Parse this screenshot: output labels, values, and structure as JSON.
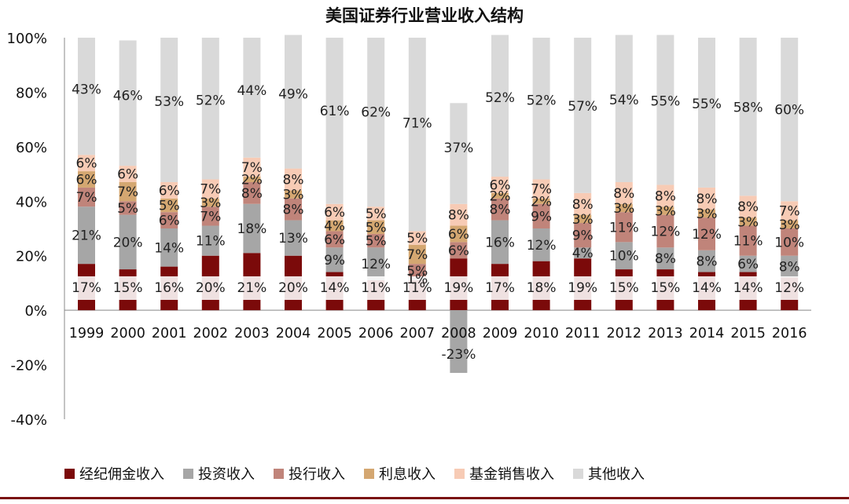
{
  "chart_data": {
    "type": "bar",
    "stacked": true,
    "title": "美国证券行业营业收入结构",
    "xlabel": "",
    "ylabel": "",
    "ylim": [
      -0.4,
      1.0
    ],
    "yticks": [
      -0.4,
      -0.2,
      0,
      0.2,
      0.4,
      0.6,
      0.8,
      1.0
    ],
    "ytick_labels": [
      "-40%",
      "-20%",
      "0%",
      "20%",
      "40%",
      "60%",
      "80%",
      "100%"
    ],
    "grid": false,
    "legend_position": "bottom",
    "categories": [
      "1999",
      "2000",
      "2001",
      "2002",
      "2003",
      "2004",
      "2005",
      "2006",
      "2007",
      "2008",
      "2009",
      "2010",
      "2011",
      "2012",
      "2013",
      "2014",
      "2015",
      "2016"
    ],
    "series": [
      {
        "name": "经纪佣金收入",
        "color": "#7b0a0a",
        "values": [
          0.17,
          0.15,
          0.16,
          0.2,
          0.21,
          0.2,
          0.14,
          0.11,
          0.11,
          0.19,
          0.17,
          0.18,
          0.19,
          0.15,
          0.15,
          0.14,
          0.14,
          0.12
        ],
        "labels": [
          "17%",
          "15%",
          "16%",
          "20%",
          "21%",
          "20%",
          "14%",
          "11%",
          "11%",
          "19%",
          "17%",
          "18%",
          "19%",
          "15%",
          "15%",
          "14%",
          "14%",
          "12%"
        ]
      },
      {
        "name": "投资收入",
        "color": "#a6a6a6",
        "values": [
          0.21,
          0.2,
          0.14,
          0.11,
          0.18,
          0.13,
          0.09,
          0.12,
          0.01,
          -0.23,
          0.16,
          0.12,
          0.04,
          0.1,
          0.08,
          0.08,
          0.06,
          0.08
        ],
        "labels": [
          "21%",
          "20%",
          "14%",
          "11%",
          "18%",
          "13%",
          "9%",
          "12%",
          "1%",
          "-23%",
          "16%",
          "12%",
          "4%",
          "10%",
          "8%",
          "8%",
          "6%",
          "8%"
        ]
      },
      {
        "name": "投行收入",
        "color": "#c0847a",
        "values": [
          0.07,
          0.05,
          0.06,
          0.07,
          0.08,
          0.08,
          0.06,
          0.05,
          0.05,
          0.06,
          0.08,
          0.09,
          0.09,
          0.11,
          0.12,
          0.12,
          0.11,
          0.1
        ],
        "labels": [
          "7%",
          "5%",
          "6%",
          "7%",
          "8%",
          "8%",
          "6%",
          "5%",
          "5%",
          "6%",
          "8%",
          "9%",
          "9%",
          "11%",
          "12%",
          "12%",
          "11%",
          "10%"
        ]
      },
      {
        "name": "利息收入",
        "color": "#d4a771",
        "values": [
          0.06,
          0.07,
          0.05,
          0.03,
          0.02,
          0.03,
          0.04,
          0.05,
          0.07,
          0.06,
          0.02,
          0.02,
          0.03,
          0.03,
          0.03,
          0.03,
          0.03,
          0.03
        ],
        "labels": [
          "6%",
          "7%",
          "5%",
          "3%",
          "2%",
          "3%",
          "4%",
          "5%",
          "7%",
          "6%",
          "2%",
          "2%",
          "3%",
          "3%",
          "3%",
          "3%",
          "3%",
          "3%"
        ]
      },
      {
        "name": "基金销售收入",
        "color": "#f7cbb5",
        "values": [
          0.06,
          0.06,
          0.06,
          0.07,
          0.07,
          0.08,
          0.06,
          0.05,
          0.05,
          0.08,
          0.06,
          0.07,
          0.08,
          0.08,
          0.08,
          0.08,
          0.08,
          0.07
        ],
        "labels": [
          "6%",
          "6%",
          "6%",
          "7%",
          "7%",
          "8%",
          "6%",
          "5%",
          "5%",
          "8%",
          "6%",
          "7%",
          "8%",
          "8%",
          "8%",
          "8%",
          "8%",
          "7%"
        ]
      },
      {
        "name": "其他收入",
        "color": "#d9d9d9",
        "values": [
          0.43,
          0.46,
          0.53,
          0.52,
          0.44,
          0.49,
          0.61,
          0.62,
          0.71,
          0.37,
          0.52,
          0.52,
          0.57,
          0.54,
          0.55,
          0.55,
          0.58,
          0.6
        ],
        "labels": [
          "43%",
          "46%",
          "53%",
          "52%",
          "44%",
          "49%",
          "61%",
          "62%",
          "71%",
          "37%",
          "52%",
          "52%",
          "57%",
          "54%",
          "55%",
          "55%",
          "58%",
          "60%"
        ]
      }
    ]
  }
}
